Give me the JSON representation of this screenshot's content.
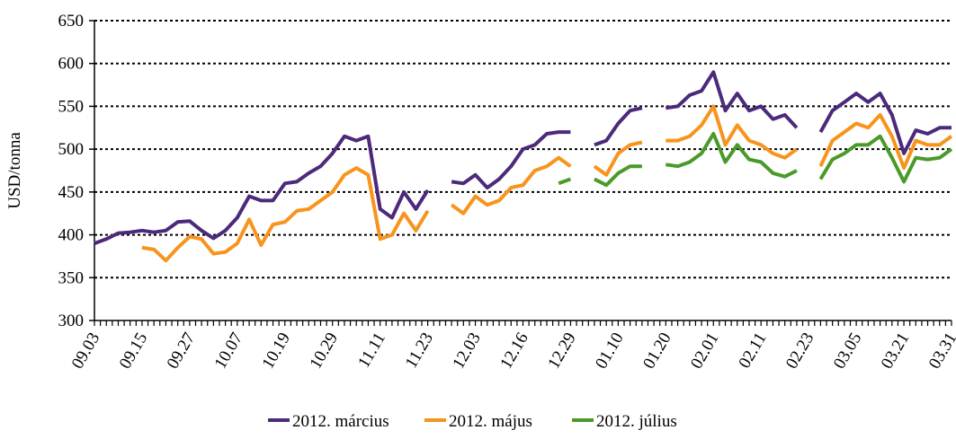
{
  "chart_data": {
    "type": "line",
    "y_label": "USD/tonna",
    "categories": [
      "09.03",
      null,
      null,
      null,
      "09.15",
      null,
      null,
      null,
      "09.27",
      null,
      null,
      null,
      "10.07",
      null,
      null,
      null,
      "10.19",
      null,
      null,
      null,
      "10.29",
      null,
      null,
      null,
      "11.11",
      null,
      null,
      null,
      "11.23",
      null,
      null,
      null,
      "12.03",
      null,
      null,
      null,
      "12.16",
      null,
      null,
      null,
      "12.29",
      null,
      null,
      null,
      "01.10",
      null,
      null,
      null,
      "01.20",
      null,
      null,
      null,
      "02.01",
      null,
      null,
      null,
      "02.11",
      null,
      null,
      null,
      "02.23",
      null,
      null,
      null,
      "03.05",
      null,
      null,
      null,
      "03.21",
      null,
      null,
      null,
      "03.31"
    ],
    "series": [
      {
        "name": "2012. március",
        "color": "#4b2a7b",
        "values": [
          390,
          395,
          402,
          403,
          405,
          403,
          405,
          415,
          416,
          405,
          396,
          405,
          420,
          445,
          440,
          440,
          460,
          462,
          472,
          480,
          495,
          515,
          510,
          515,
          430,
          420,
          450,
          430,
          452,
          null,
          462,
          460,
          470,
          455,
          465,
          480,
          500,
          505,
          518,
          520,
          520,
          null,
          505,
          510,
          530,
          545,
          548,
          null,
          548,
          550,
          563,
          568,
          590,
          545,
          565,
          545,
          550,
          535,
          540,
          525,
          null,
          520,
          545,
          555,
          565,
          555,
          565,
          540,
          495,
          522,
          518,
          525,
          525
        ]
      },
      {
        "name": "2012. május",
        "color": "#f7941d",
        "values": [
          null,
          null,
          null,
          null,
          385,
          383,
          370,
          385,
          398,
          395,
          378,
          380,
          390,
          418,
          388,
          412,
          415,
          428,
          430,
          440,
          450,
          470,
          478,
          470,
          395,
          400,
          425,
          405,
          428,
          null,
          435,
          425,
          445,
          435,
          440,
          455,
          458,
          475,
          480,
          490,
          480,
          null,
          480,
          470,
          495,
          505,
          508,
          null,
          510,
          510,
          515,
          528,
          550,
          505,
          528,
          510,
          505,
          495,
          490,
          500,
          null,
          480,
          510,
          520,
          530,
          525,
          540,
          515,
          478,
          510,
          505,
          505,
          515
        ]
      },
      {
        "name": "2012. július",
        "color": "#4a9a2a",
        "values": [
          null,
          null,
          null,
          null,
          null,
          null,
          null,
          null,
          null,
          null,
          null,
          null,
          null,
          null,
          null,
          null,
          null,
          null,
          null,
          null,
          null,
          null,
          null,
          null,
          null,
          null,
          null,
          null,
          null,
          null,
          null,
          null,
          null,
          null,
          null,
          null,
          null,
          null,
          null,
          460,
          465,
          null,
          465,
          458,
          472,
          480,
          480,
          null,
          482,
          480,
          485,
          495,
          518,
          485,
          505,
          488,
          485,
          472,
          468,
          475,
          null,
          465,
          488,
          495,
          505,
          505,
          515,
          490,
          462,
          490,
          488,
          490,
          500
        ]
      }
    ],
    "ylim": [
      300,
      650
    ],
    "yticks": [
      300,
      350,
      400,
      450,
      500,
      550,
      600,
      650
    ],
    "grid": true,
    "legend": "bottom"
  }
}
